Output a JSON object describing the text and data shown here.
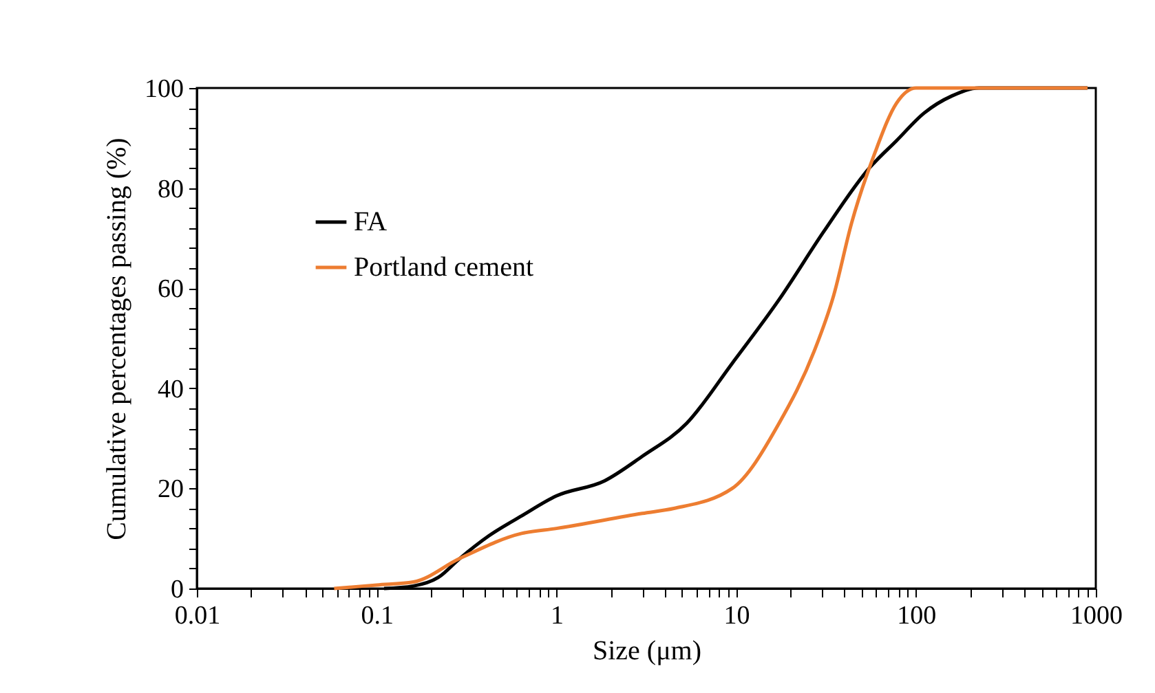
{
  "chart_data": {
    "type": "line",
    "xlabel": "Size (μm)",
    "ylabel": "Cumulative percentages passing (%)",
    "log": "x",
    "xlim": [
      0.01,
      1000
    ],
    "ylim": [
      0,
      100
    ],
    "xticks": [
      0.01,
      {
        "value": 0.02,
        "label": null
      },
      {
        "value": 0.03,
        "label": null
      },
      {
        "value": 0.04,
        "label": null
      },
      {
        "value": 0.05,
        "label": null
      },
      {
        "value": 0.06,
        "label": null
      },
      {
        "value": 0.07,
        "label": null
      },
      {
        "value": 0.08,
        "label": null
      },
      {
        "value": 0.09,
        "label": null
      },
      0.1,
      {
        "value": 0.2,
        "label": null
      },
      {
        "value": 0.3,
        "label": null
      },
      {
        "value": 0.4,
        "label": null
      },
      {
        "value": 0.5,
        "label": null
      },
      {
        "value": 0.6,
        "label": null
      },
      {
        "value": 0.7,
        "label": null
      },
      {
        "value": 0.8,
        "label": null
      },
      {
        "value": 0.9,
        "label": null
      },
      1,
      {
        "value": 2,
        "label": null
      },
      {
        "value": 3,
        "label": null
      },
      {
        "value": 4,
        "label": null
      },
      {
        "value": 5,
        "label": null
      },
      {
        "value": 6,
        "label": null
      },
      {
        "value": 7,
        "label": null
      },
      {
        "value": 8,
        "label": null
      },
      {
        "value": 9,
        "label": null
      },
      10,
      {
        "value": 20,
        "label": null
      },
      {
        "value": 30,
        "label": null
      },
      {
        "value": 40,
        "label": null
      },
      {
        "value": 50,
        "label": null
      },
      {
        "value": 60,
        "label": null
      },
      {
        "value": 70,
        "label": null
      },
      {
        "value": 80,
        "label": null
      },
      {
        "value": 90,
        "label": null
      },
      100,
      {
        "value": 200,
        "label": null
      },
      {
        "value": 300,
        "label": null
      },
      {
        "value": 400,
        "label": null
      },
      {
        "value": 500,
        "label": null
      },
      {
        "value": 600,
        "label": null
      },
      {
        "value": 700,
        "label": null
      },
      {
        "value": 800,
        "label": null
      },
      {
        "value": 900,
        "label": null
      },
      1000
    ],
    "yticks": [
      0,
      {
        "value": 4,
        "label": null
      },
      {
        "value": 8,
        "label": null
      },
      {
        "value": 12,
        "label": null
      },
      {
        "value": 16,
        "label": null
      },
      20,
      {
        "value": 24,
        "label": null
      },
      {
        "value": 28,
        "label": null
      },
      {
        "value": 32,
        "label": null
      },
      {
        "value": 36,
        "label": null
      },
      40,
      {
        "value": 44,
        "label": null
      },
      {
        "value": 48,
        "label": null
      },
      {
        "value": 52,
        "label": null
      },
      {
        "value": 56,
        "label": null
      },
      60,
      {
        "value": 64,
        "label": null
      },
      {
        "value": 68,
        "label": null
      },
      {
        "value": 72,
        "label": null
      },
      {
        "value": 76,
        "label": null
      },
      80,
      {
        "value": 84,
        "label": null
      },
      {
        "value": 88,
        "label": null
      },
      {
        "value": 92,
        "label": null
      },
      {
        "value": 96,
        "label": null
      },
      100
    ],
    "grid": false,
    "legend": "top left",
    "marker": "none",
    "line_style": "solid",
    "series": [
      {
        "name": "FA",
        "color": "#000000",
        "x": [
          0.11,
          0.16,
          0.22,
          0.29,
          0.42,
          0.64,
          1.0,
          1.85,
          3.0,
          5.3,
          9.5,
          17.3,
          30.8,
          55,
          78,
          111,
          158,
          224,
          900
        ],
        "values": [
          0,
          0.5,
          2.2,
          6,
          10.5,
          14.5,
          18.5,
          21.5,
          26.4,
          33,
          45,
          57.7,
          71.4,
          84,
          89.5,
          95,
          98.4,
          100,
          100
        ]
      },
      {
        "name": "Portland cement",
        "color": "#ed7d31",
        "x": [
          0.058,
          0.1,
          0.16,
          0.29,
          0.64,
          1.0,
          3.0,
          4.5,
          9.5,
          17.3,
          27.2,
          34.8,
          43.8,
          59,
          78,
          100,
          200,
          900
        ],
        "values": [
          0,
          0.7,
          1.3,
          6,
          11,
          12,
          15,
          16,
          20,
          33,
          47.5,
          58.5,
          73,
          87,
          97,
          100,
          100,
          100
        ]
      }
    ]
  }
}
